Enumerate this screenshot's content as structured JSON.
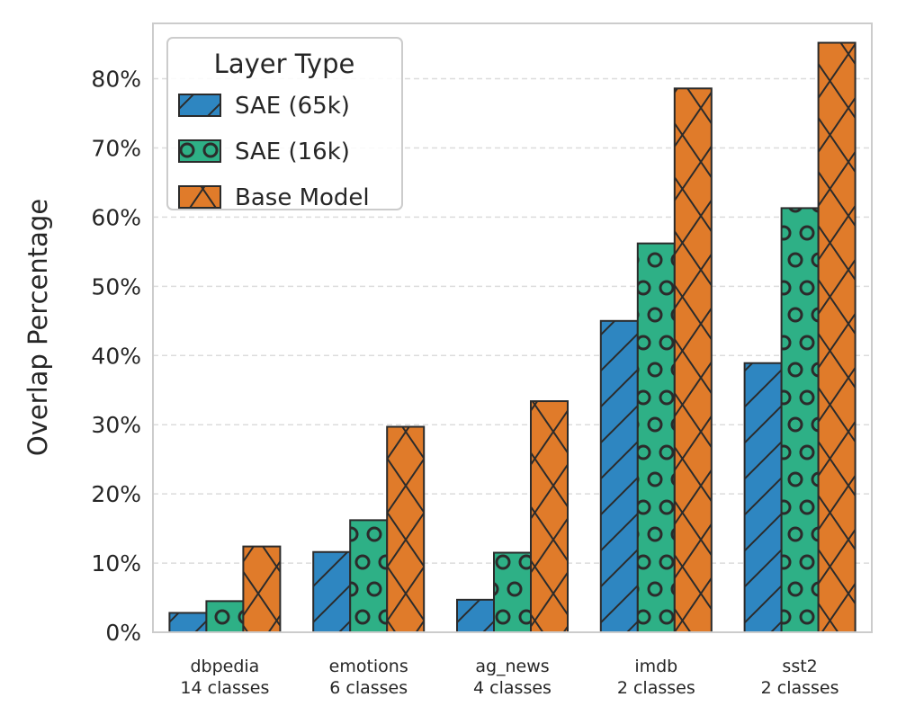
{
  "chart_data": {
    "type": "bar",
    "categories": [
      [
        "dbpedia",
        "14 classes"
      ],
      [
        "emotions",
        "6 classes"
      ],
      [
        "ag_news",
        "4 classes"
      ],
      [
        "imdb",
        "2 classes"
      ],
      [
        "sst2",
        "2 classes"
      ]
    ],
    "series": [
      {
        "name": "SAE (65k)",
        "values": [
          2.8,
          11.6,
          4.7,
          45.0,
          38.9
        ],
        "color": "#2e86c1",
        "pattern": "diagonal"
      },
      {
        "name": "SAE (16k)",
        "values": [
          4.5,
          16.2,
          11.5,
          56.2,
          61.3
        ],
        "color": "#2eb086",
        "pattern": "circles"
      },
      {
        "name": "Base Model",
        "values": [
          12.4,
          29.7,
          33.4,
          78.6,
          85.2
        ],
        "color": "#e07b2a",
        "pattern": "crosshatch"
      }
    ],
    "xlabel": "",
    "ylabel": "Overlap Percentage",
    "ylim": [
      0,
      88
    ],
    "yticks": [
      0,
      10,
      20,
      30,
      40,
      50,
      60,
      70,
      80
    ],
    "ytick_format": "{v}%",
    "grid": "y-dashed",
    "legend": {
      "title": "Layer Type",
      "placement": "top-left"
    }
  }
}
